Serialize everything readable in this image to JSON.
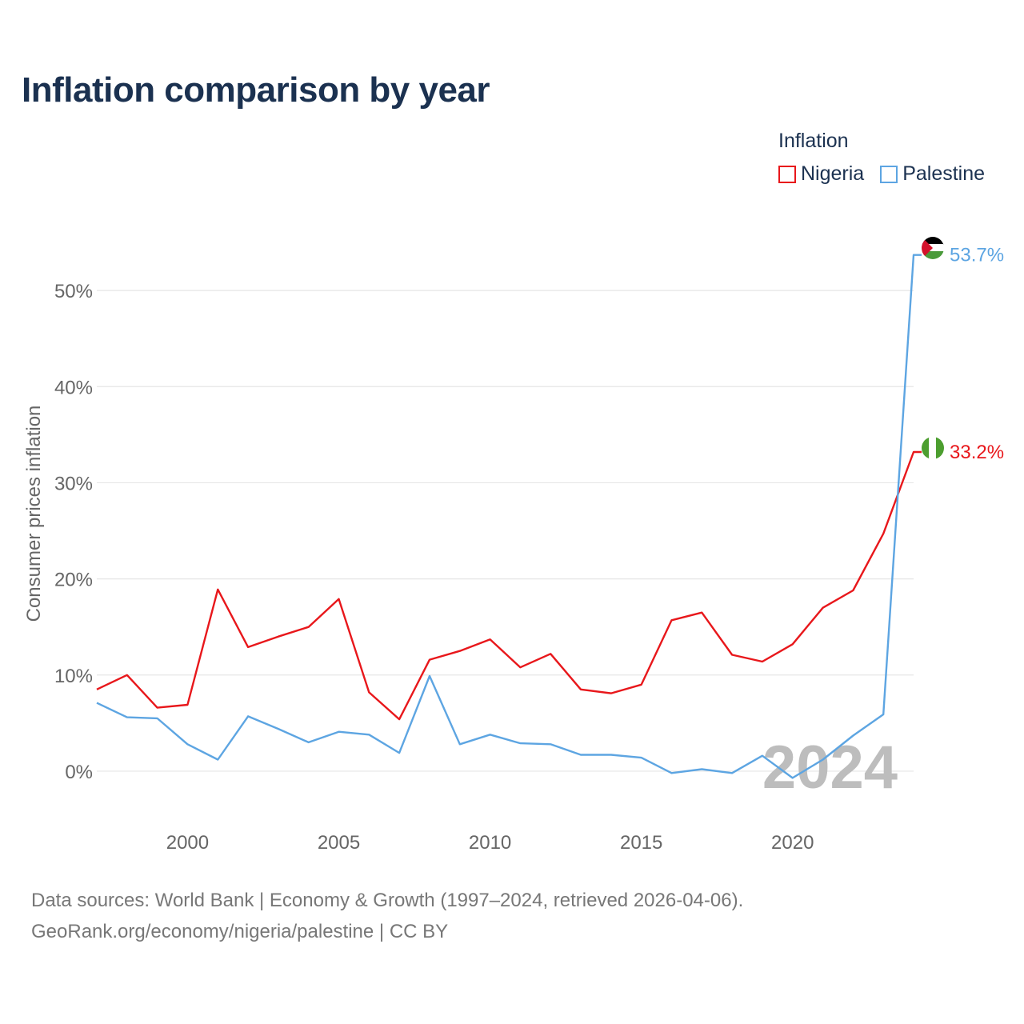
{
  "title": "Inflation comparison by year",
  "legend": {
    "title": "Inflation",
    "items": [
      {
        "label": "Nigeria",
        "color": "#e8171b"
      },
      {
        "label": "Palestine",
        "color": "#5da5e2"
      }
    ]
  },
  "source": {
    "line1": "Data sources: World Bank | Economy & Growth (1997–2024, retrieved 2026-04-06).",
    "line2": "GeoRank.org/economy/nigeria/palestine | CC BY"
  },
  "chart_data": {
    "type": "line",
    "title": "Inflation comparison by year",
    "xlabel": "",
    "ylabel": "Consumer prices inflation",
    "x": [
      1997,
      1998,
      1999,
      2000,
      2001,
      2002,
      2003,
      2004,
      2005,
      2006,
      2007,
      2008,
      2009,
      2010,
      2011,
      2012,
      2013,
      2014,
      2015,
      2016,
      2017,
      2018,
      2019,
      2020,
      2021,
      2022,
      2023,
      2024
    ],
    "xticks": [
      2000,
      2005,
      2010,
      2015,
      2020
    ],
    "xtick_labels": [
      "2000",
      "2005",
      "2010",
      "2015",
      "2020"
    ],
    "xlim": [
      1997,
      2024
    ],
    "yticks": [
      0,
      10,
      20,
      30,
      40,
      50
    ],
    "ytick_labels": [
      "0%",
      "10%",
      "20%",
      "30%",
      "40%",
      "50%"
    ],
    "ylim": [
      -3.5,
      57
    ],
    "grid": true,
    "watermark_year": "2024",
    "series": [
      {
        "name": "Nigeria",
        "color": "#e8171b",
        "end_label": "33.2%",
        "flag": "nigeria",
        "values": [
          8.5,
          10.0,
          6.6,
          6.9,
          18.9,
          12.9,
          14.0,
          15.0,
          17.9,
          8.2,
          5.4,
          11.6,
          12.5,
          13.7,
          10.8,
          12.2,
          8.5,
          8.1,
          9.0,
          15.7,
          16.5,
          12.1,
          11.4,
          13.2,
          17.0,
          18.8,
          24.7,
          33.2
        ]
      },
      {
        "name": "Palestine",
        "color": "#5da5e2",
        "end_label": "53.7%",
        "flag": "palestine",
        "values": [
          7.1,
          5.6,
          5.5,
          2.8,
          1.2,
          5.7,
          4.4,
          3.0,
          4.1,
          3.8,
          1.9,
          9.9,
          2.8,
          3.8,
          2.9,
          2.8,
          1.7,
          1.7,
          1.4,
          -0.2,
          0.2,
          -0.2,
          1.6,
          -0.7,
          1.2,
          3.7,
          5.9,
          53.7
        ]
      }
    ]
  }
}
